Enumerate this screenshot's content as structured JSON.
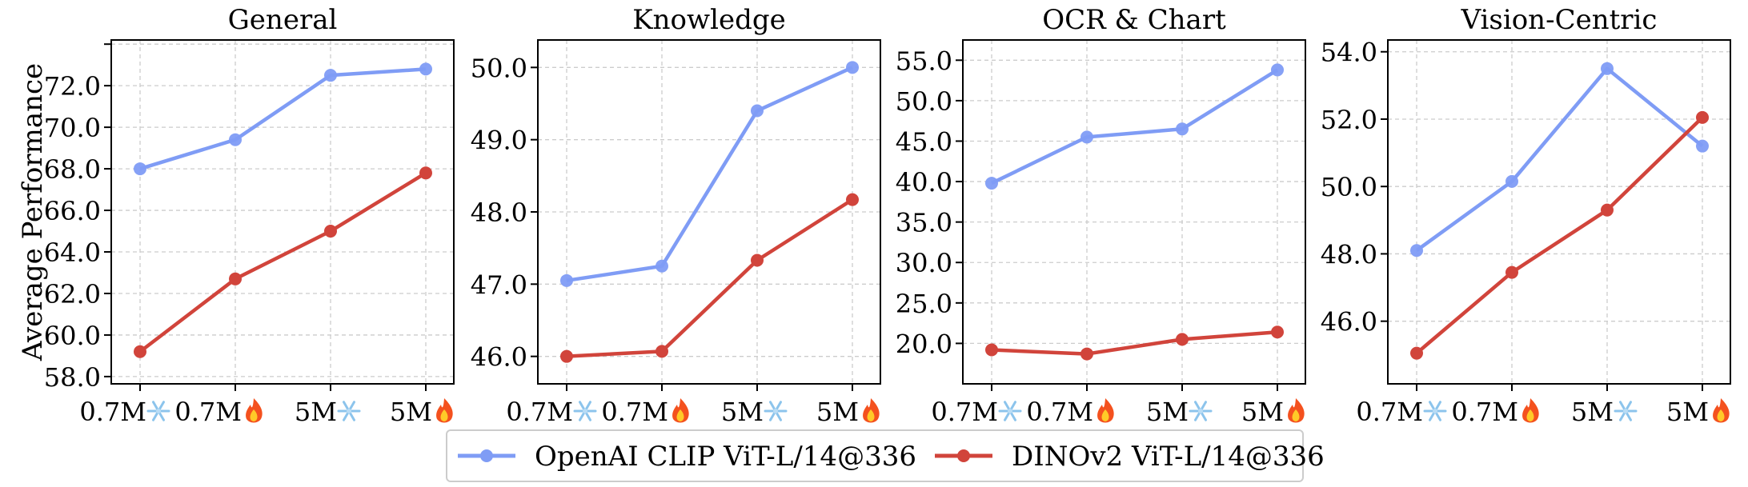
{
  "ylabel": "Average Performance",
  "legend": {
    "placement": "bottom-center",
    "entries": [
      "OpenAI CLIP ViT-L/14@336",
      "DINOv2 ViT-L/14@336"
    ]
  },
  "colors": {
    "clip": "#7f9cf5",
    "dino": "#d1443b",
    "grid": "#cccccc"
  },
  "x_icons": [
    "snowflake-icon",
    "fire-icon",
    "snowflake-icon",
    "fire-icon"
  ],
  "chart_data": [
    {
      "type": "line",
      "title": "General",
      "categories": [
        "0.7M",
        "0.7M",
        "5M",
        "5M"
      ],
      "ylim": [
        57.65,
        74.2
      ],
      "yticks": [
        58,
        60,
        62,
        64,
        66,
        68,
        70,
        72,
        74
      ],
      "ytick_labels": [
        "58.0",
        "60.0",
        "62.0",
        "64.0",
        "66.0",
        "68.0",
        "70.0",
        "72.0",
        ""
      ],
      "grid": true,
      "series": [
        {
          "name": "OpenAI CLIP ViT-L/14@336",
          "values": [
            68.0,
            69.4,
            72.5,
            72.8
          ]
        },
        {
          "name": "DINOv2 ViT-L/14@336",
          "values": [
            59.2,
            62.7,
            65.0,
            67.8
          ]
        }
      ]
    },
    {
      "type": "line",
      "title": "Knowledge",
      "categories": [
        "0.7M",
        "0.7M",
        "5M",
        "5M"
      ],
      "ylim": [
        45.62,
        50.38
      ],
      "yticks": [
        46,
        47,
        48,
        49,
        50
      ],
      "ytick_labels": [
        "46.0",
        "47.0",
        "48.0",
        "49.0",
        "50.0"
      ],
      "grid": true,
      "series": [
        {
          "name": "OpenAI CLIP ViT-L/14@336",
          "values": [
            47.05,
            47.25,
            49.4,
            50.0
          ]
        },
        {
          "name": "DINOv2 ViT-L/14@336",
          "values": [
            46.0,
            46.07,
            47.33,
            48.17
          ]
        }
      ]
    },
    {
      "type": "line",
      "title": "OCR & Chart",
      "categories": [
        "0.7M",
        "0.7M",
        "5M",
        "5M"
      ],
      "ylim": [
        15.0,
        57.5
      ],
      "yticks": [
        20,
        25,
        30,
        35,
        40,
        45,
        50,
        55
      ],
      "ytick_labels": [
        "20.0",
        "25.0",
        "30.0",
        "35.0",
        "40.0",
        "45.0",
        "50.0",
        "55.0"
      ],
      "grid": true,
      "series": [
        {
          "name": "OpenAI CLIP ViT-L/14@336",
          "values": [
            39.8,
            45.5,
            46.5,
            53.8
          ]
        },
        {
          "name": "DINOv2 ViT-L/14@336",
          "values": [
            19.2,
            18.7,
            20.5,
            21.4
          ]
        }
      ]
    },
    {
      "type": "line",
      "title": "Vision-Centric",
      "categories": [
        "0.7M",
        "0.7M",
        "5M",
        "5M"
      ],
      "ylim": [
        44.14,
        54.35
      ],
      "yticks": [
        46,
        48,
        50,
        52,
        54
      ],
      "ytick_labels": [
        "46.0",
        "48.0",
        "50.0",
        "52.0",
        "54.0"
      ],
      "grid": true,
      "series": [
        {
          "name": "OpenAI CLIP ViT-L/14@336",
          "values": [
            48.1,
            50.15,
            53.5,
            51.2
          ]
        },
        {
          "name": "DINOv2 ViT-L/14@336",
          "values": [
            45.05,
            47.45,
            49.3,
            52.05
          ]
        }
      ]
    }
  ]
}
